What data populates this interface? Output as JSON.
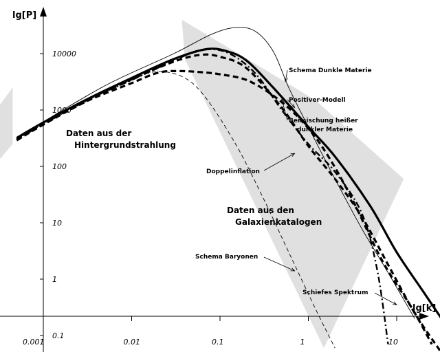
{
  "chart_data": {
    "type": "line",
    "title": "",
    "xlabel": "lg[k]",
    "ylabel": "lg[P]",
    "x_scale": "log",
    "y_scale": "log",
    "xlim": [
      0.001,
      50
    ],
    "ylim": [
      0.06,
      100000
    ],
    "x_ticks": [
      {
        "value": 0.001,
        "label": "0.001"
      },
      {
        "value": 0.01,
        "label": "0.01"
      },
      {
        "value": 0.1,
        "label": "0.1"
      },
      {
        "value": 1,
        "label": "1"
      },
      {
        "value": 10,
        "label": "10"
      }
    ],
    "y_ticks": [
      {
        "value": 0.1,
        "label": "0.1"
      },
      {
        "value": 1,
        "label": "1"
      },
      {
        "value": 10,
        "label": "10"
      },
      {
        "value": 100,
        "label": "100"
      },
      {
        "value": 1000,
        "label": "1000"
      },
      {
        "value": 10000,
        "label": "10000"
      }
    ],
    "grid": false,
    "regions": [
      {
        "name": "Daten aus der Hintergrundstrahlung",
        "line1": "Daten aus der",
        "line2": "Hintergrundstrahlung",
        "color": "#e0e0e0",
        "polygon": [
          [
            0.00021,
            500
          ],
          [
            0.00045,
            2500
          ],
          [
            0.00045,
            250
          ],
          [
            0.00021,
            60
          ]
        ]
      },
      {
        "name": "Daten aus den Galaxienkatalogen",
        "line1": "Daten aus den",
        "line2": "Galaxienkatalogen",
        "color": "#e0e0e0",
        "polygon": [
          [
            0.037,
            40000
          ],
          [
            1.2,
            1500
          ],
          [
            12,
            60
          ],
          [
            1.5,
            0.06
          ],
          [
            0.04,
            8000
          ]
        ]
      }
    ],
    "series": [
      {
        "name": "Schema Dunkle Materie",
        "style": "thin",
        "points": [
          [
            0.0008,
            500
          ],
          [
            0.005,
            2700
          ],
          [
            0.03,
            10000
          ],
          [
            0.08,
            22000
          ],
          [
            0.15,
            29000
          ],
          [
            0.25,
            25000
          ],
          [
            0.4,
            11000
          ],
          [
            0.6,
            2500
          ],
          [
            1,
            500
          ],
          [
            2,
            60
          ],
          [
            4,
            8
          ],
          [
            8,
            1.3
          ],
          [
            16,
            0.2
          ]
        ]
      },
      {
        "name": "Positiver-Modell",
        "style": "thick",
        "points": [
          [
            0.0005,
            320
          ],
          [
            0.001,
            600
          ],
          [
            0.003,
            1500
          ],
          [
            0.01,
            3700
          ],
          [
            0.03,
            8000
          ],
          [
            0.07,
            12000
          ],
          [
            0.12,
            11000
          ],
          [
            0.2,
            7500
          ],
          [
            0.4,
            2500
          ],
          [
            1,
            500
          ],
          [
            2,
            150
          ],
          [
            5,
            20
          ],
          [
            10,
            3
          ],
          [
            20,
            0.6
          ],
          [
            40,
            0.12
          ]
        ]
      },
      {
        "name": "Beimischung heißer dunkler Materie",
        "style": "dashed",
        "points": [
          [
            0.0005,
            290
          ],
          [
            0.001,
            550
          ],
          [
            0.003,
            1400
          ],
          [
            0.01,
            3000
          ],
          [
            0.02,
            4600
          ],
          [
            0.035,
            4900
          ],
          [
            0.06,
            4700
          ],
          [
            0.1,
            4300
          ],
          [
            0.2,
            3400
          ],
          [
            0.4,
            1800
          ],
          [
            0.8,
            700
          ],
          [
            1.5,
            200
          ],
          [
            3,
            30
          ],
          [
            7,
            2
          ],
          [
            15,
            0.3
          ],
          [
            25,
            0.07
          ]
        ]
      },
      {
        "name": "Doppelinflation",
        "style": "dashdot",
        "points": [
          [
            0.0005,
            300
          ],
          [
            0.001,
            560
          ],
          [
            0.003,
            1450
          ],
          [
            0.01,
            3400
          ],
          [
            0.03,
            7500
          ],
          [
            0.06,
            11500
          ],
          [
            0.12,
            10500
          ],
          [
            0.25,
            4500
          ],
          [
            0.5,
            1000
          ],
          [
            1,
            250
          ],
          [
            2,
            80
          ],
          [
            4,
            15
          ],
          [
            6,
            1.5
          ],
          [
            8,
            0.07
          ]
        ]
      },
      {
        "name": "Schema Baryonen",
        "style": "thindashed",
        "points": [
          [
            0.0005,
            300
          ],
          [
            0.001,
            560
          ],
          [
            0.003,
            1400
          ],
          [
            0.01,
            3500
          ],
          [
            0.02,
            4800
          ],
          [
            0.04,
            3700
          ],
          [
            0.07,
            1600
          ],
          [
            0.15,
            250
          ],
          [
            0.3,
            30
          ],
          [
            0.6,
            3
          ],
          [
            1.2,
            0.3
          ],
          [
            2,
            0.06
          ]
        ]
      },
      {
        "name": "Schiefes Spektrum",
        "style": "dashed",
        "points": [
          [
            0.0005,
            300
          ],
          [
            0.001,
            560
          ],
          [
            0.003,
            1400
          ],
          [
            0.01,
            3500
          ],
          [
            0.03,
            7200
          ],
          [
            0.06,
            9500
          ],
          [
            0.1,
            8800
          ],
          [
            0.2,
            5500
          ],
          [
            0.5,
            1100
          ],
          [
            1,
            230
          ],
          [
            2,
            60
          ],
          [
            4,
            13
          ],
          [
            8,
            1.8
          ],
          [
            16,
            0.25
          ],
          [
            32,
            0.05
          ]
        ]
      }
    ],
    "annotations": [
      {
        "text": "Schema Dunkle Materie",
        "target": [
          0.55,
          3200
        ]
      },
      {
        "text": "Positiver-Modell",
        "target": [
          0.7,
          1100
        ]
      },
      {
        "text": "Beimischung heißer",
        "line2": "dunkler Materie",
        "target": [
          0.5,
          1550
        ]
      },
      {
        "text": "Doppelinflation",
        "target": [
          0.7,
          170
        ]
      },
      {
        "text": "Schema Baryonen",
        "target": [
          0.7,
          1.4
        ]
      },
      {
        "text": "Schiefes Spektrum",
        "target": [
          10,
          0.35
        ]
      }
    ]
  }
}
